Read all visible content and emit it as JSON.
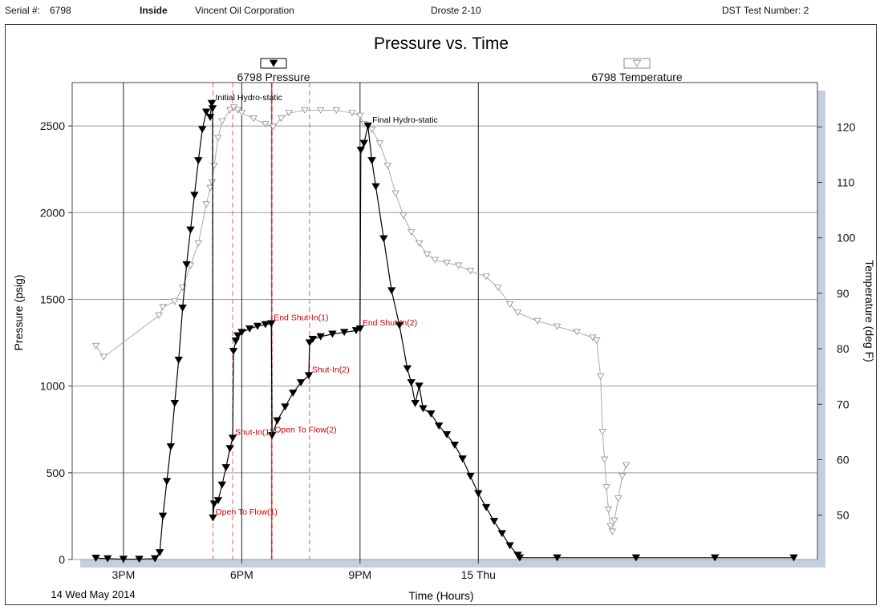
{
  "header": {
    "serial_label": "Serial #:",
    "serial_value": "6798",
    "position": "Inside",
    "company": "Vincent Oil Corporation",
    "well": "Droste 2-10",
    "dst_label": "DST Test Number: 2"
  },
  "footer": {
    "date": "14 Wed May 2014"
  },
  "chart_data": {
    "type": "line",
    "title": "Pressure vs. Time",
    "xlabel": "Time (Hours)",
    "ylabel": "Pressure (psig)",
    "y2label": "Temperature (deg F)",
    "x_unit": "hours after 12:00 on 14 May 2014",
    "xlim": [
      1.7,
      20.6
    ],
    "ylim": [
      0,
      2750
    ],
    "y2lim": [
      42,
      128
    ],
    "x_ticks": [
      {
        "value": 3,
        "label": "3PM"
      },
      {
        "value": 6,
        "label": "6PM"
      },
      {
        "value": 9,
        "label": "9PM"
      },
      {
        "value": 12,
        "label": "15 Thu"
      }
    ],
    "y_ticks": [
      0,
      500,
      1000,
      1500,
      2000,
      2500
    ],
    "y2_ticks": [
      50,
      60,
      70,
      80,
      90,
      100,
      110,
      120
    ],
    "grid": true,
    "legend": [
      {
        "name": "6798 Pressure",
        "marker": "filled-triangle-down",
        "color": "#000000"
      },
      {
        "name": "6798 Temperature",
        "marker": "hollow-triangle-down",
        "color": "#999999"
      }
    ],
    "series": [
      {
        "name": "6798 Pressure",
        "axis": "left",
        "color": "#000000",
        "points": [
          [
            2.3,
            8
          ],
          [
            2.6,
            5
          ],
          [
            3.0,
            2
          ],
          [
            3.4,
            2
          ],
          [
            3.8,
            5
          ],
          [
            3.92,
            40
          ],
          [
            4.0,
            250
          ],
          [
            4.1,
            450
          ],
          [
            4.2,
            650
          ],
          [
            4.3,
            900
          ],
          [
            4.4,
            1150
          ],
          [
            4.5,
            1450
          ],
          [
            4.6,
            1700
          ],
          [
            4.7,
            1900
          ],
          [
            4.8,
            2100
          ],
          [
            4.9,
            2300
          ],
          [
            5.0,
            2480
          ],
          [
            5.1,
            2580
          ],
          [
            5.2,
            2550
          ],
          [
            5.24,
            2630
          ],
          [
            5.26,
            2600
          ],
          [
            5.27,
            240
          ],
          [
            5.3,
            320
          ],
          [
            5.4,
            340
          ],
          [
            5.5,
            430
          ],
          [
            5.6,
            530
          ],
          [
            5.7,
            640
          ],
          [
            5.77,
            700
          ],
          [
            5.79,
            1200
          ],
          [
            5.85,
            1260
          ],
          [
            5.9,
            1290
          ],
          [
            6.0,
            1310
          ],
          [
            6.2,
            1330
          ],
          [
            6.4,
            1345
          ],
          [
            6.6,
            1355
          ],
          [
            6.75,
            1360
          ],
          [
            6.77,
            715
          ],
          [
            6.9,
            800
          ],
          [
            7.1,
            880
          ],
          [
            7.3,
            960
          ],
          [
            7.5,
            1020
          ],
          [
            7.7,
            1060
          ],
          [
            7.72,
            1250
          ],
          [
            7.8,
            1270
          ],
          [
            8.0,
            1285
          ],
          [
            8.3,
            1300
          ],
          [
            8.6,
            1310
          ],
          [
            8.9,
            1320
          ],
          [
            9.0,
            1330
          ],
          [
            9.02,
            2360
          ],
          [
            9.1,
            2400
          ],
          [
            9.2,
            2500
          ],
          [
            9.3,
            2300
          ],
          [
            9.4,
            2150
          ],
          [
            9.6,
            1850
          ],
          [
            9.8,
            1550
          ],
          [
            10.0,
            1350
          ],
          [
            10.2,
            1100
          ],
          [
            10.3,
            1020
          ],
          [
            10.4,
            900
          ],
          [
            10.5,
            1000
          ],
          [
            10.6,
            870
          ],
          [
            10.8,
            840
          ],
          [
            11.0,
            770
          ],
          [
            11.2,
            720
          ],
          [
            11.4,
            660
          ],
          [
            11.6,
            580
          ],
          [
            11.8,
            480
          ],
          [
            12.0,
            380
          ],
          [
            12.2,
            300
          ],
          [
            12.4,
            220
          ],
          [
            12.6,
            150
          ],
          [
            12.8,
            80
          ],
          [
            13.0,
            25
          ],
          [
            13.05,
            10
          ],
          [
            14.0,
            10
          ],
          [
            16.0,
            10
          ],
          [
            18.0,
            10
          ],
          [
            20.0,
            10
          ]
        ]
      },
      {
        "name": "6798 Temperature",
        "axis": "right",
        "color": "#999999",
        "points": [
          [
            2.3,
            80.5
          ],
          [
            2.5,
            78.5
          ],
          [
            3.9,
            86
          ],
          [
            4.0,
            87.5
          ],
          [
            4.3,
            88.5
          ],
          [
            4.5,
            91
          ],
          [
            4.7,
            95
          ],
          [
            4.9,
            99
          ],
          [
            5.1,
            106
          ],
          [
            5.2,
            109
          ],
          [
            5.25,
            110
          ],
          [
            5.3,
            113
          ],
          [
            5.4,
            118
          ],
          [
            5.5,
            121
          ],
          [
            5.7,
            123
          ],
          [
            5.8,
            123.5
          ],
          [
            5.9,
            123
          ],
          [
            6.0,
            122.5
          ],
          [
            6.3,
            121.5
          ],
          [
            6.6,
            120.5
          ],
          [
            6.8,
            120
          ],
          [
            7.0,
            121.5
          ],
          [
            7.2,
            122.5
          ],
          [
            7.6,
            123
          ],
          [
            8.0,
            123
          ],
          [
            8.4,
            123
          ],
          [
            8.8,
            122.5
          ],
          [
            9.0,
            122
          ],
          [
            9.1,
            120.5
          ],
          [
            9.3,
            119.5
          ],
          [
            9.5,
            117
          ],
          [
            9.7,
            113
          ],
          [
            9.9,
            108
          ],
          [
            10.1,
            104
          ],
          [
            10.3,
            101
          ],
          [
            10.5,
            99
          ],
          [
            10.7,
            97
          ],
          [
            10.9,
            96
          ],
          [
            11.2,
            95.5
          ],
          [
            11.5,
            95
          ],
          [
            11.8,
            94
          ],
          [
            12.2,
            93
          ],
          [
            12.5,
            91
          ],
          [
            12.8,
            88
          ],
          [
            13.0,
            86.5
          ],
          [
            13.5,
            85
          ],
          [
            14.0,
            84
          ],
          [
            14.5,
            83
          ],
          [
            14.9,
            82
          ],
          [
            15.0,
            81.5
          ],
          [
            15.1,
            75
          ],
          [
            15.15,
            65
          ],
          [
            15.2,
            60
          ],
          [
            15.25,
            55
          ],
          [
            15.3,
            51
          ],
          [
            15.35,
            48
          ],
          [
            15.4,
            47
          ],
          [
            15.45,
            49
          ],
          [
            15.55,
            53
          ],
          [
            15.65,
            57
          ],
          [
            15.75,
            59
          ]
        ]
      }
    ],
    "event_lines": [
      5.27,
      5.77,
      6.75,
      6.77,
      7.72
    ],
    "annotations": [
      {
        "text": "Initial Hydro-static",
        "x": 5.27,
        "y": 2630,
        "color": "#000000"
      },
      {
        "text": "Final Hydro-static",
        "x": 9.25,
        "y": 2500,
        "color": "#000000"
      },
      {
        "text": "Open To Flow(1)",
        "x": 5.27,
        "y": 240,
        "color": "#cc0000"
      },
      {
        "text": "Shut-In(1)",
        "x": 5.77,
        "y": 700,
        "color": "#cc0000"
      },
      {
        "text": "End Shut-In(1)",
        "x": 6.75,
        "y": 1360,
        "color": "#cc0000"
      },
      {
        "text": "Open To Flow(2)",
        "x": 6.77,
        "y": 715,
        "color": "#cc0000"
      },
      {
        "text": "Shut-In(2)",
        "x": 7.72,
        "y": 1060,
        "color": "#cc0000"
      },
      {
        "text": "End Shut-In(2)",
        "x": 9.0,
        "y": 1330,
        "color": "#cc0000"
      }
    ]
  }
}
